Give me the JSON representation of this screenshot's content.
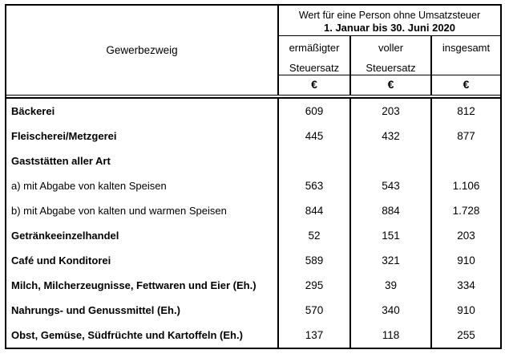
{
  "table": {
    "col1_header": "Gewerbezweig",
    "group_header_line1": "Wert für eine Person ohne Umsatzsteuer",
    "group_header_line2": "1. Januar bis 30. Juni 2020",
    "columns": [
      {
        "line1": "ermäßigter",
        "line2": "Steuersatz"
      },
      {
        "line1": "voller",
        "line2": "Steuersatz"
      },
      {
        "line1": "insgesamt",
        "line2": ""
      }
    ],
    "unit": "€",
    "rows": [
      {
        "label": "Bäckerei",
        "values": [
          "609",
          "203",
          "812"
        ]
      },
      {
        "label": "Fleischerei/Metzgerei",
        "values": [
          "445",
          "432",
          "877"
        ]
      },
      {
        "label": "Gaststätten aller Art",
        "values": [
          "",
          "",
          ""
        ]
      },
      {
        "label": "a) mit Abgabe von kalten Speisen",
        "values": [
          "563",
          "543",
          "1.106"
        ]
      },
      {
        "label": "b) mit Abgabe von kalten und warmen Speisen",
        "values": [
          "844",
          "884",
          "1.728"
        ]
      },
      {
        "label": "Getränkeeinzelhandel",
        "values": [
          "52",
          "151",
          "203"
        ]
      },
      {
        "label": "Café und Konditorei",
        "values": [
          "589",
          "321",
          "910"
        ]
      },
      {
        "label": "Milch, Milcherzeugnisse, Fettwaren und Eier (Eh.)",
        "values": [
          "295",
          "39",
          "334"
        ]
      },
      {
        "label": "Nahrungs- und Genussmittel (Eh.)",
        "values": [
          "570",
          "340",
          "910"
        ]
      },
      {
        "label": "Obst, Gemüse, Südfrüchte und Kartoffeln (Eh.)",
        "values": [
          "137",
          "118",
          "255"
        ]
      }
    ]
  },
  "colors": {
    "border": "#000000",
    "text": "#000000",
    "background": "#ffffff"
  }
}
